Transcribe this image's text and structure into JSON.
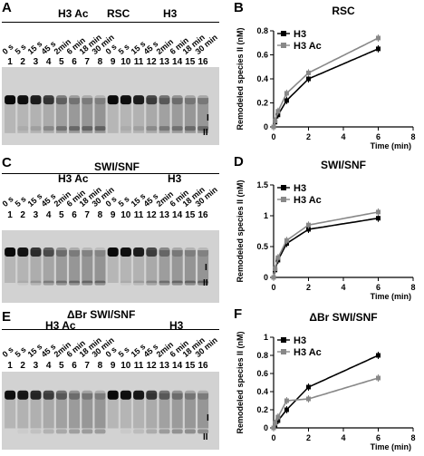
{
  "panels": [
    {
      "letter": "A",
      "gel": {
        "left_title": "H3 Ac",
        "right_title": "RSC",
        "right_group_title": "H3",
        "times": [
          "0 s",
          "5 s",
          "15 s",
          "45 s",
          "2min",
          "6 min",
          "18 min",
          "30 min",
          "0 s",
          "5 s",
          "15 s",
          "45 s",
          "2min",
          "6 min",
          "18 min",
          "30 min"
        ],
        "lanes": [
          "1",
          "2",
          "3",
          "4",
          "5",
          "6",
          "7",
          "8",
          "9",
          "10",
          "11",
          "12",
          "13",
          "14",
          "15",
          "16"
        ],
        "band_I": [
          0.95,
          0.92,
          0.85,
          0.7,
          0.4,
          0.25,
          0.18,
          0.15,
          0.95,
          0.92,
          0.85,
          0.65,
          0.45,
          0.3,
          0.22,
          0.2
        ],
        "band_II": [
          0.0,
          0.05,
          0.1,
          0.2,
          0.28,
          0.32,
          0.34,
          0.34,
          0.0,
          0.05,
          0.1,
          0.18,
          0.25,
          0.28,
          0.3,
          0.3
        ],
        "labels": [
          "I",
          "II"
        ]
      }
    },
    {
      "letter": "C",
      "gel": {
        "left_title": "H3 Ac",
        "right_title": "SWI/SNF",
        "right_group_title": "H3",
        "times": [
          "0 s",
          "5 s",
          "15 s",
          "45 s",
          "2min",
          "6 min",
          "18 min",
          "30 min",
          "0 s",
          "5 s",
          "15 s",
          "45 s",
          "2min",
          "6 min",
          "18 min",
          "30 min"
        ],
        "lanes": [
          "1",
          "2",
          "3",
          "4",
          "5",
          "6",
          "7",
          "8",
          "9",
          "10",
          "11",
          "12",
          "13",
          "14",
          "15",
          "16"
        ],
        "band_I": [
          0.95,
          0.9,
          0.75,
          0.55,
          0.3,
          0.18,
          0.12,
          0.1,
          0.95,
          0.92,
          0.85,
          0.65,
          0.35,
          0.2,
          0.15,
          0.12
        ],
        "band_II": [
          0.0,
          0.05,
          0.15,
          0.25,
          0.3,
          0.32,
          0.32,
          0.32,
          0.0,
          0.05,
          0.12,
          0.22,
          0.3,
          0.33,
          0.34,
          0.34
        ],
        "labels": [
          "I",
          "II"
        ]
      }
    },
    {
      "letter": "E",
      "gel": {
        "left_title": "H3 Ac",
        "right_title": "ΔBr SWI/SNF",
        "right_group_title": "H3",
        "times": [
          "0 s",
          "5 s",
          "15 s",
          "45 s",
          "2min",
          "6 min",
          "18 min",
          "30 min",
          "0 s",
          "5 s",
          "15 s",
          "45 s",
          "2min",
          "6 min",
          "18 min",
          "30 min"
        ],
        "lanes": [
          "1",
          "2",
          "3",
          "4",
          "5",
          "6",
          "7",
          "8",
          "9",
          "10",
          "11",
          "12",
          "13",
          "14",
          "15",
          "16"
        ],
        "band_I": [
          0.92,
          0.88,
          0.8,
          0.65,
          0.45,
          0.3,
          0.22,
          0.18,
          0.95,
          0.92,
          0.88,
          0.7,
          0.45,
          0.3,
          0.22,
          0.18
        ],
        "band_II": [
          0.0,
          0.03,
          0.08,
          0.15,
          0.2,
          0.24,
          0.26,
          0.26,
          0.0,
          0.04,
          0.1,
          0.18,
          0.26,
          0.3,
          0.32,
          0.32
        ],
        "labels": [
          "I",
          "II"
        ]
      }
    }
  ],
  "chart_data": [
    {
      "letter": "B",
      "type": "line",
      "title": "RSC",
      "xlabel": "Time (min)",
      "ylabel": "Remodeled species II (nM)",
      "xlim": [
        0,
        8
      ],
      "ylim": [
        0,
        0.8
      ],
      "xticks": [
        "0",
        "2",
        "4",
        "6",
        "8"
      ],
      "yticks": [
        "0",
        "0.2",
        "0.4",
        "0.6",
        "0.8"
      ],
      "legend": "top-left",
      "series": [
        {
          "name": "H3",
          "color": "#000000",
          "x": [
            0,
            0.083,
            0.25,
            0.75,
            2,
            6
          ],
          "y": [
            0,
            0.04,
            0.1,
            0.22,
            0.4,
            0.65
          ]
        },
        {
          "name": "H3 Ac",
          "color": "#888888",
          "x": [
            0,
            0.083,
            0.25,
            0.75,
            2,
            6
          ],
          "y": [
            0,
            0.05,
            0.13,
            0.28,
            0.45,
            0.74
          ]
        }
      ]
    },
    {
      "letter": "D",
      "type": "line",
      "title": "SWI/SNF",
      "xlabel": "Time (min)",
      "ylabel": "Remodeled species II (nM)",
      "xlim": [
        0,
        8
      ],
      "ylim": [
        0,
        1.5
      ],
      "xticks": [
        "0",
        "2",
        "4",
        "6",
        "8"
      ],
      "yticks": [
        "0",
        "0.5",
        "1",
        "1.5"
      ],
      "legend": "top-left",
      "series": [
        {
          "name": "H3",
          "color": "#000000",
          "x": [
            0,
            0.083,
            0.25,
            0.75,
            2,
            6
          ],
          "y": [
            0,
            0.12,
            0.28,
            0.55,
            0.78,
            0.96
          ]
        },
        {
          "name": "H3 Ac",
          "color": "#888888",
          "x": [
            0,
            0.083,
            0.25,
            0.75,
            2,
            6
          ],
          "y": [
            0,
            0.14,
            0.32,
            0.6,
            0.85,
            1.06
          ]
        }
      ]
    },
    {
      "letter": "F",
      "type": "line",
      "title": "ΔBr SWI/SNF",
      "xlabel": "Time (min)",
      "ylabel": "Remodeled species II (nM)",
      "xlim": [
        0,
        8
      ],
      "ylim": [
        0,
        1
      ],
      "xticks": [
        "0",
        "2",
        "4",
        "6",
        "8"
      ],
      "yticks": [
        "0",
        "0.2",
        "0.4",
        "0.6",
        "0.8",
        "1"
      ],
      "legend": "top-left",
      "series": [
        {
          "name": "H3",
          "color": "#000000",
          "x": [
            0,
            0.083,
            0.25,
            0.75,
            2,
            6
          ],
          "y": [
            0,
            0.03,
            0.08,
            0.2,
            0.45,
            0.8
          ]
        },
        {
          "name": "H3 Ac",
          "color": "#888888",
          "x": [
            0,
            0.083,
            0.25,
            0.75,
            2,
            6
          ],
          "y": [
            0,
            0.05,
            0.12,
            0.3,
            0.32,
            0.55
          ]
        }
      ]
    }
  ]
}
